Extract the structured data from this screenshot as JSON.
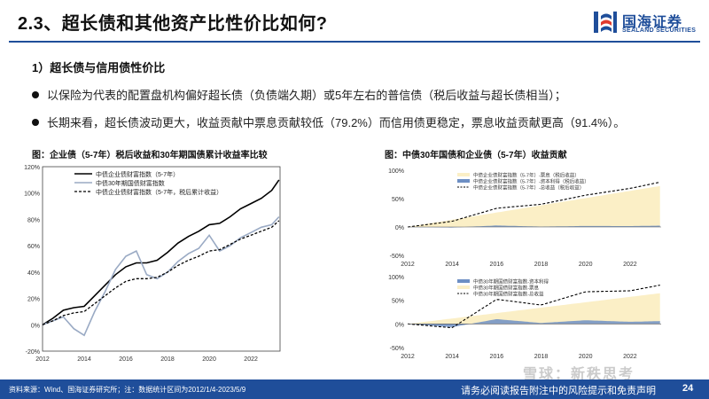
{
  "header": {
    "title": "2.3、超长债和其他资产比性价比如何?",
    "logo_cn": "国海证券",
    "logo_en": "SEALAND SECURITIES"
  },
  "section": {
    "subtitle": "1）超长债与信用债性价比",
    "bullets": [
      "以保险为代表的配置盘机构偏好超长债（负债端久期）或5年左右的普信债（税后收益与超长债相当）；",
      "长期来看，超长债波动更大，收益贡献中票息贡献较低（79.2%）而信用债更稳定，票息收益贡献更高（91.4%）。"
    ]
  },
  "left_chart": {
    "caption": "图：企业债（5-7年）税后收益和30年期国债累计收益率比较"
  },
  "right_chart": {
    "caption": "图：中债30年国债和企业债（5-7年）收益贡献"
  },
  "footer": {
    "source": "资料来源：Wind、国海证券研究所；注：数据统计区间为2012/1/4-2023/5/9",
    "disclaimer": "请务必阅读报告附注中的风险提示和免责声明",
    "page": "24",
    "watermark": "雪球：新秩思考"
  },
  "colors": {
    "brand": "#1f4e9a",
    "corp_line": "#000000",
    "gov_line": "#9aaac4",
    "area_fill": "#fbefc6",
    "area_blue": "#6d8fc4"
  },
  "chart_data": [
    {
      "type": "line",
      "title": "",
      "xlabel": "",
      "ylabel": "",
      "xlim": [
        2012,
        2023.4
      ],
      "ylim": [
        -20,
        120
      ],
      "x_ticks": [
        "2012",
        "2014",
        "2016",
        "2018",
        "2020",
        "2022"
      ],
      "y_ticks": [
        "-20%",
        "0%",
        "20%",
        "40%",
        "60%",
        "80%",
        "100%",
        "120%"
      ],
      "legend_position": "top",
      "series": [
        {
          "name": "中债企业债财富指数（5-7年）",
          "style": "solid-black",
          "x": [
            2012,
            2012.5,
            2013,
            2013.5,
            2014,
            2014.5,
            2015,
            2015.5,
            2016,
            2016.5,
            2017,
            2017.5,
            2018,
            2018.5,
            2019,
            2019.5,
            2020,
            2020.5,
            2021,
            2021.5,
            2022,
            2022.5,
            2023,
            2023.35
          ],
          "values": [
            0,
            5,
            11,
            13,
            14,
            22,
            30,
            38,
            44,
            47,
            47,
            49,
            55,
            62,
            67,
            71,
            76,
            77,
            82,
            88,
            92,
            96,
            102,
            110
          ]
        },
        {
          "name": "中债30年期国债财富指数",
          "style": "solid-gray",
          "x": [
            2012,
            2012.5,
            2013,
            2013.5,
            2014,
            2014.5,
            2015,
            2015.5,
            2016,
            2016.5,
            2017,
            2017.5,
            2018,
            2018.5,
            2019,
            2019.5,
            2020,
            2020.5,
            2021,
            2021.5,
            2022,
            2022.5,
            2023,
            2023.35
          ],
          "values": [
            0,
            3,
            6,
            -3,
            -8,
            10,
            25,
            42,
            52,
            56,
            38,
            35,
            40,
            48,
            54,
            58,
            68,
            56,
            60,
            66,
            70,
            74,
            76,
            82
          ]
        },
        {
          "name": "中债企业债财富指数（5-7年，税后累计收益）",
          "style": "dashed-black",
          "x": [
            2012,
            2012.5,
            2013,
            2013.5,
            2014,
            2014.5,
            2015,
            2015.5,
            2016,
            2016.5,
            2017,
            2017.5,
            2018,
            2018.5,
            2019,
            2019.5,
            2020,
            2020.5,
            2021,
            2021.5,
            2022,
            2022.5,
            2023,
            2023.35
          ],
          "values": [
            0,
            3,
            7,
            9,
            10,
            16,
            22,
            28,
            33,
            35,
            35,
            36,
            40,
            45,
            49,
            52,
            56,
            57,
            61,
            65,
            68,
            71,
            74,
            79
          ]
        }
      ]
    },
    {
      "type": "area",
      "title": "",
      "xlim": [
        2012,
        2023.4
      ],
      "ylim": [
        -50,
        100
      ],
      "x_ticks": [
        "2012",
        "2014",
        "2016",
        "2018",
        "2020",
        "2022"
      ],
      "y_ticks": [
        "-50%",
        "0%",
        "50%",
        "100%"
      ],
      "series": [
        {
          "name": "中债企业债财富指数（5-7年）-票息（税后收益）",
          "values_desc": "area"
        },
        {
          "name": "中债企业债财富指数（5-7年）-资本利得（税后收益）",
          "values_desc": "area"
        },
        {
          "name": "中债企业债财富指数（5-7年）-总收益（税后收益）",
          "x": [
            2012,
            2014,
            2016,
            2018,
            2020,
            2022,
            2023.35
          ],
          "values": [
            0,
            10,
            33,
            40,
            56,
            68,
            79
          ]
        }
      ]
    },
    {
      "type": "area",
      "title": "",
      "xlim": [
        2012,
        2023.4
      ],
      "ylim": [
        -50,
        100
      ],
      "x_ticks": [
        "2012",
        "2014",
        "2016",
        "2018",
        "2020",
        "2022"
      ],
      "y_ticks": [
        "-50%",
        "0%",
        "50%",
        "100%"
      ],
      "series": [
        {
          "name": "中债30年期国债财富指数-资本利得",
          "values_desc": "area"
        },
        {
          "name": "中债30年期国债财富指数-票息",
          "values_desc": "area"
        },
        {
          "name": "中债30年期国债财富指数-总收益",
          "x": [
            2012,
            2014,
            2016,
            2018,
            2020,
            2022,
            2023.35
          ],
          "values": [
            0,
            -8,
            52,
            40,
            68,
            70,
            82
          ]
        }
      ]
    }
  ]
}
